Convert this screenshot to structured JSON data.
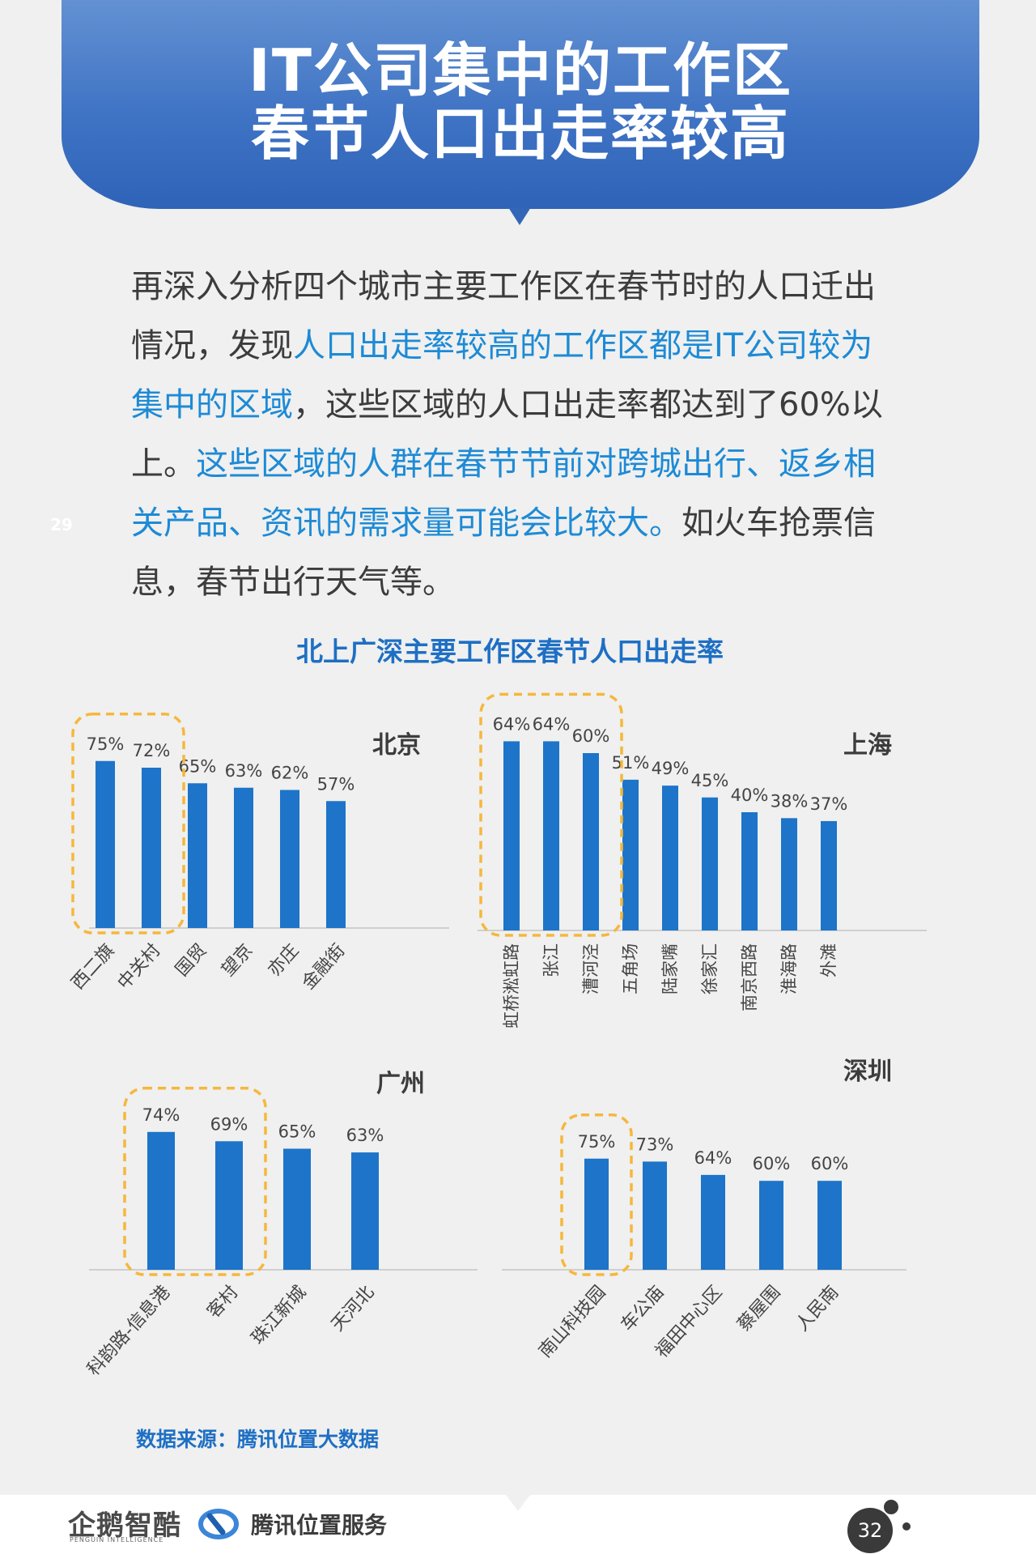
{
  "header": {
    "title_line1": "IT公司集中的工作区",
    "title_line2": "春节人口出走率较高"
  },
  "side_page_number": "29",
  "paragraph": {
    "p1": "再深入分析四个城市主要工作区在春节时的人口迁出情况，发现",
    "h1": "人口出走率较高的工作区都是IT公司较为集中的区域",
    "p2": "，这些区域的人口出走率都达到了60%以上。",
    "h2": "这些区域的人群在春节节前对跨城出行、返乡相关产品、资讯的需求量可能会比较大。",
    "p3": "如火车抢票信息，春节出行天气等。"
  },
  "chart_title": "北上广深主要工作区春节人口出走率",
  "colors": {
    "bar": "#1d74c9",
    "highlight_box": "#f6b73c",
    "title_blue": "#1e6fc4"
  },
  "chart_data": [
    {
      "type": "bar",
      "title": "北京",
      "categories": [
        "西二旗",
        "中关村",
        "国贸",
        "望京",
        "亦庄",
        "金融街"
      ],
      "values": [
        75,
        72,
        65,
        63,
        62,
        57
      ],
      "labels": [
        "75%",
        "72%",
        "65%",
        "63%",
        "62%",
        "57%"
      ],
      "highlighted": [
        0,
        1
      ]
    },
    {
      "type": "bar",
      "title": "上海",
      "categories": [
        "虹桥淞虹路",
        "张江",
        "漕河泾",
        "五角场",
        "陆家嘴",
        "徐家汇",
        "南京西路",
        "淮海路",
        "外滩"
      ],
      "values": [
        64,
        64,
        60,
        51,
        49,
        45,
        40,
        38,
        37
      ],
      "labels": [
        "64%",
        "64%",
        "60%",
        "51%",
        "49%",
        "45%",
        "40%",
        "38%",
        "37%"
      ],
      "highlighted": [
        0,
        1,
        2
      ]
    },
    {
      "type": "bar",
      "title": "广州",
      "categories": [
        "科韵路-信息港",
        "客村",
        "珠江新城",
        "天河北"
      ],
      "values": [
        74,
        69,
        65,
        63
      ],
      "labels": [
        "74%",
        "69%",
        "65%",
        "63%"
      ],
      "highlighted": [
        0,
        1
      ]
    },
    {
      "type": "bar",
      "title": "深圳",
      "categories": [
        "南山科技园",
        "车公庙",
        "福田中心区",
        "蔡屋围",
        "人民南"
      ],
      "values": [
        75,
        73,
        64,
        60,
        60
      ],
      "labels": [
        "75%",
        "73%",
        "64%",
        "60%",
        "60%"
      ],
      "highlighted": [
        0
      ]
    }
  ],
  "source": "数据来源：腾讯位置大数据",
  "footer": {
    "logo_penguin": "企鹅智酷",
    "logo_penguin_sub": "PENGUIN INTELLIGENCE",
    "logo_tencent": "腾讯位置服务",
    "page_number": "32"
  }
}
